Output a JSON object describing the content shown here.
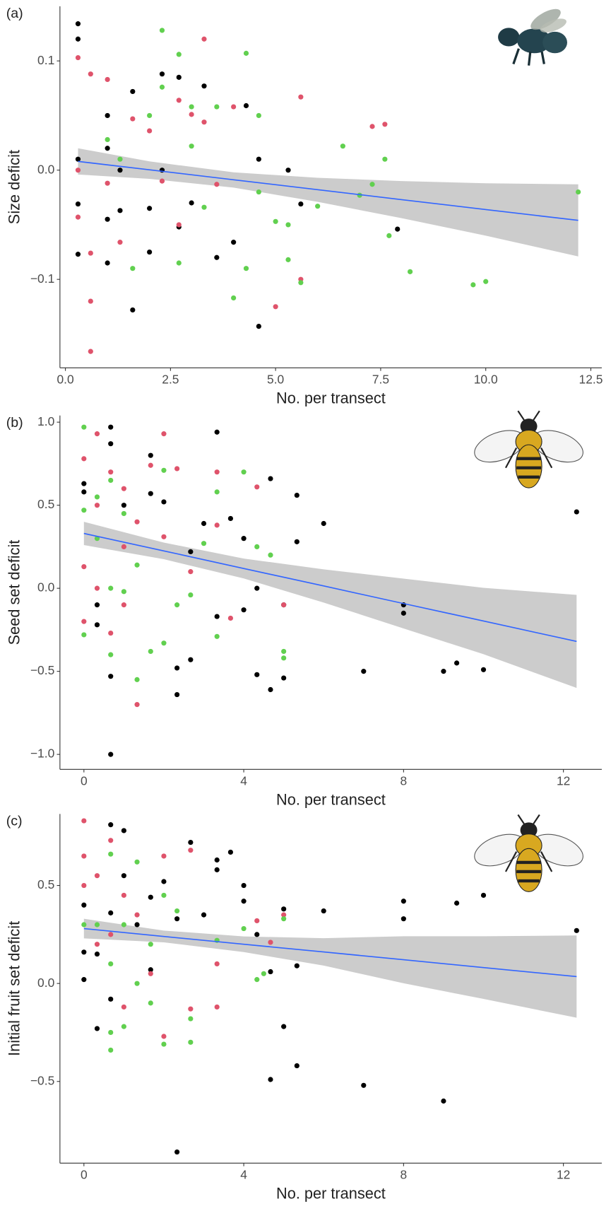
{
  "chart_data": [
    {
      "type": "scatter",
      "panel_label": "(a)",
      "x_label": "No. per transect",
      "y_label": "Size deficit",
      "xlim": [
        -0.13,
        12.76
      ],
      "ylim": [
        -0.181,
        0.15
      ],
      "xticks": [
        {
          "value": 0,
          "label": "0.0"
        },
        2.5,
        {
          "value": 5,
          "label": "5.0"
        },
        7.5,
        {
          "value": 10,
          "label": "10.0"
        },
        12.5
      ],
      "yticks": [
        0.1,
        {
          "value": 0,
          "label": "0.0"
        },
        {
          "value": -0.1,
          "label": "−0.1"
        }
      ],
      "series": [
        {
          "color": "#000000",
          "x": [
            0.3,
            0.3,
            0.3,
            0.3,
            0.3,
            1,
            1,
            1,
            1,
            1.3,
            1.6,
            1.6,
            2,
            2,
            2.3,
            2.7,
            2.7,
            3,
            3.3,
            3.6,
            4,
            4.3,
            4.6,
            4.6,
            5.3,
            5.6,
            7.9,
            2.3,
            1.3
          ],
          "values": [
            0.134,
            0.12,
            0.01,
            -0.031,
            -0.077,
            0.05,
            0.02,
            -0.085,
            -0.045,
            -0.037,
            0.072,
            -0.128,
            -0.075,
            -0.035,
            0.088,
            0.085,
            -0.052,
            -0.03,
            0.077,
            -0.08,
            -0.066,
            0.059,
            0.01,
            -0.143,
            0.0,
            -0.031,
            -0.054,
            0.0,
            0.0
          ]
        },
        {
          "color": "#df536b",
          "x": [
            0.3,
            0.3,
            0.3,
            0.6,
            0.6,
            0.6,
            0.6,
            1,
            1,
            1.3,
            1.6,
            2,
            2.3,
            2.7,
            3,
            3.3,
            3.3,
            3.6,
            4,
            5,
            5.6,
            5.6,
            7.3,
            7.6,
            2.7
          ],
          "values": [
            0.103,
            0.0,
            -0.043,
            0.088,
            -0.12,
            -0.166,
            -0.076,
            0.083,
            -0.012,
            -0.066,
            0.047,
            0.036,
            -0.01,
            0.064,
            0.051,
            0.12,
            0.044,
            -0.013,
            0.058,
            -0.125,
            0.067,
            -0.1,
            0.04,
            0.042,
            -0.05
          ]
        },
        {
          "color": "#61d04f",
          "x": [
            1,
            1.3,
            1.6,
            2,
            2.3,
            2.3,
            2.7,
            2.7,
            3,
            3,
            3.3,
            3.6,
            4,
            4.3,
            4.3,
            4.6,
            4.6,
            5,
            5.3,
            5.3,
            5.6,
            6,
            6.6,
            7,
            7.3,
            7.6,
            7.7,
            8.2,
            9.7,
            10,
            12.2
          ],
          "values": [
            0.028,
            0.01,
            -0.09,
            0.05,
            0.128,
            0.076,
            0.106,
            -0.085,
            0.058,
            0.022,
            -0.034,
            0.058,
            -0.117,
            0.107,
            -0.09,
            -0.02,
            0.05,
            -0.047,
            -0.05,
            -0.082,
            -0.103,
            -0.033,
            0.022,
            -0.023,
            -0.013,
            0.01,
            -0.06,
            -0.093,
            -0.105,
            -0.102,
            -0.02
          ]
        }
      ],
      "fit": {
        "color": "#3366ff",
        "band_color": "#cccccc",
        "x": [
          0.3,
          2,
          4,
          6,
          8,
          10,
          12.2
        ],
        "values": [
          0.008,
          0.0003,
          -0.0088,
          -0.0179,
          -0.027,
          -0.0361,
          -0.046
        ],
        "lower": [
          -0.004,
          -0.008,
          -0.016,
          -0.029,
          -0.044,
          -0.06,
          -0.079
        ],
        "upper": [
          0.02,
          0.008,
          -0.002,
          -0.007,
          -0.01,
          -0.012,
          -0.013
        ]
      }
    },
    {
      "type": "scatter",
      "panel_label": "(b)",
      "x_label": "No. per transect",
      "y_label": "Seed set deficit",
      "xlim": [
        -0.6,
        12.96
      ],
      "ylim": [
        -1.09,
        1.04
      ],
      "xticks": [
        0,
        4,
        8,
        12
      ],
      "yticks": [
        {
          "value": 1,
          "label": "1.0"
        },
        0.5,
        {
          "value": 0,
          "label": "0.0"
        },
        {
          "value": -0.5,
          "label": "−0.5"
        },
        {
          "value": -1,
          "label": "−1.0"
        }
      ],
      "series": [
        {
          "color": "#000000",
          "x": [
            0,
            0,
            0.33,
            0.33,
            0.67,
            0.67,
            0.67,
            0.67,
            1,
            1.67,
            1.67,
            2,
            2.33,
            2.33,
            2.67,
            2.67,
            3,
            3.33,
            3.33,
            3.67,
            4,
            4,
            4.33,
            4.33,
            4.67,
            4.67,
            5,
            5,
            5.33,
            5.33,
            6,
            7,
            8,
            8,
            9,
            9.33,
            10,
            12.33
          ],
          "values": [
            0.63,
            0.58,
            -0.1,
            -0.22,
            0.97,
            0.87,
            -0.53,
            -1.0,
            0.5,
            0.8,
            0.57,
            0.52,
            -0.48,
            -0.64,
            0.22,
            -0.43,
            0.39,
            0.94,
            -0.17,
            0.42,
            0.3,
            -0.13,
            0.0,
            -0.52,
            0.66,
            -0.61,
            -0.1,
            -0.54,
            0.56,
            0.28,
            0.39,
            -0.5,
            -0.1,
            -0.15,
            -0.5,
            -0.45,
            -0.49,
            0.46
          ]
        },
        {
          "color": "#df536b",
          "x": [
            0,
            0,
            0,
            0.33,
            0.33,
            0.33,
            0.67,
            0.67,
            1,
            1,
            1,
            1.33,
            1.33,
            1.67,
            2,
            2,
            2.33,
            2.67,
            3.33,
            3.33,
            3.67,
            4.33,
            5
          ],
          "values": [
            0.78,
            0.13,
            -0.2,
            0.93,
            0.5,
            0.0,
            0.7,
            -0.27,
            0.6,
            0.25,
            -0.1,
            -0.7,
            0.4,
            0.74,
            0.93,
            0.31,
            0.72,
            0.1,
            0.7,
            0.38,
            -0.18,
            0.61,
            -0.1
          ]
        },
        {
          "color": "#61d04f",
          "x": [
            0,
            0,
            0,
            0.33,
            0.33,
            0.67,
            0.67,
            0.67,
            1,
            1,
            1.33,
            1.33,
            1.67,
            2,
            2,
            2.33,
            2.67,
            3,
            3.33,
            3.33,
            4,
            4.33,
            4.67,
            5,
            5
          ],
          "values": [
            0.97,
            0.47,
            -0.28,
            0.55,
            0.3,
            0.65,
            0.0,
            -0.4,
            0.45,
            -0.02,
            -0.55,
            0.14,
            -0.38,
            0.71,
            -0.33,
            -0.1,
            -0.04,
            0.27,
            0.58,
            -0.29,
            0.7,
            0.25,
            0.2,
            -0.38,
            -0.42
          ]
        }
      ],
      "fit": {
        "color": "#3366ff",
        "band_color": "#cccccc",
        "x": [
          0,
          2,
          4,
          6,
          8,
          10,
          12.33
        ],
        "values": [
          0.33,
          0.225,
          0.119,
          0.014,
          -0.092,
          -0.197,
          -0.32
        ],
        "lower": [
          0.26,
          0.175,
          0.059,
          -0.086,
          -0.242,
          -0.397,
          -0.6
        ],
        "upper": [
          0.4,
          0.275,
          0.179,
          0.114,
          0.058,
          0.003,
          -0.04
        ]
      }
    },
    {
      "type": "scatter",
      "panel_label": "(c)",
      "x_label": "No. per transect",
      "y_label": "Initial fruit set deficit",
      "xlim": [
        -0.6,
        12.96
      ],
      "ylim": [
        -0.917,
        0.865
      ],
      "xticks": [
        0,
        4,
        8,
        12
      ],
      "yticks": [
        0.5,
        {
          "value": 0,
          "label": "0.0"
        },
        {
          "value": -0.5,
          "label": "−0.5"
        }
      ],
      "series": [
        {
          "color": "#000000",
          "x": [
            0,
            0,
            0,
            0.33,
            0.33,
            0.67,
            0.67,
            0.67,
            1,
            1,
            1.33,
            1.67,
            1.67,
            2,
            2.33,
            2.33,
            2.67,
            3,
            3.33,
            3.33,
            3.67,
            4,
            4,
            4.33,
            4.67,
            4.67,
            5,
            5,
            5.33,
            5.33,
            6,
            7,
            8,
            8,
            9,
            9.33,
            10,
            12.33
          ],
          "values": [
            0.4,
            0.16,
            0.02,
            -0.23,
            0.15,
            0.81,
            0.36,
            -0.08,
            0.78,
            0.55,
            0.3,
            0.44,
            0.07,
            0.52,
            0.33,
            -0.86,
            0.72,
            0.35,
            0.63,
            0.58,
            0.67,
            0.5,
            0.42,
            0.25,
            -0.49,
            0.06,
            -0.22,
            0.38,
            0.09,
            -0.42,
            0.37,
            -0.52,
            0.42,
            0.33,
            -0.6,
            0.41,
            0.45,
            0.27
          ]
        },
        {
          "color": "#df536b",
          "x": [
            0,
            0,
            0,
            0.33,
            0.33,
            0.67,
            0.67,
            1,
            1,
            1.33,
            1.67,
            2,
            2,
            2.67,
            2.67,
            3.33,
            3.33,
            4.33,
            4.67,
            5
          ],
          "values": [
            0.83,
            0.65,
            0.5,
            0.55,
            0.2,
            0.73,
            0.25,
            0.45,
            -0.12,
            0.35,
            0.05,
            0.65,
            -0.27,
            0.68,
            -0.13,
            0.1,
            -0.12,
            0.32,
            0.21,
            0.35
          ]
        },
        {
          "color": "#61d04f",
          "x": [
            0,
            0.33,
            0.67,
            0.67,
            0.67,
            0.67,
            1,
            1,
            1.33,
            1.33,
            1.67,
            1.67,
            2,
            2,
            2.33,
            2.67,
            2.67,
            3.33,
            4,
            4.33,
            4.5,
            5
          ],
          "values": [
            0.3,
            0.3,
            0.66,
            0.1,
            -0.25,
            -0.34,
            0.3,
            -0.22,
            0.62,
            0.0,
            0.2,
            -0.1,
            0.45,
            -0.31,
            0.37,
            -0.3,
            -0.18,
            0.22,
            0.28,
            0.02,
            0.05,
            0.33
          ]
        }
      ],
      "fit": {
        "color": "#3366ff",
        "band_color": "#cccccc",
        "x": [
          0,
          2,
          4,
          6,
          8,
          10,
          12.33
        ],
        "values": [
          0.28,
          0.24,
          0.2,
          0.161,
          0.121,
          0.081,
          0.035
        ],
        "lower": [
          0.23,
          0.21,
          0.16,
          0.091,
          0.001,
          -0.079,
          -0.175
        ],
        "upper": [
          0.33,
          0.27,
          0.24,
          0.231,
          0.241,
          0.241,
          0.245
        ]
      }
    }
  ]
}
